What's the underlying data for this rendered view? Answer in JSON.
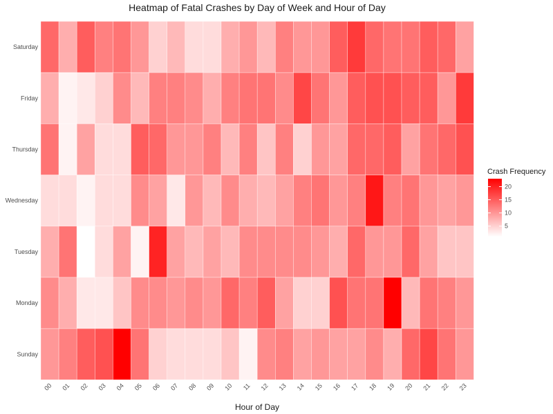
{
  "chart_data": {
    "type": "heatmap",
    "title": "Heatmap of Fatal Crashes by Day of Week and Hour of Day",
    "xlabel": "Hour of Day",
    "ylabel": "",
    "x_categories": [
      "00",
      "01",
      "02",
      "03",
      "04",
      "05",
      "06",
      "07",
      "08",
      "09",
      "10",
      "11",
      "12",
      "13",
      "14",
      "15",
      "16",
      "17",
      "18",
      "19",
      "20",
      "21",
      "22",
      "23"
    ],
    "y_categories": [
      "Saturday",
      "Friday",
      "Thursday",
      "Wednesday",
      "Tuesday",
      "Monday",
      "Sunday"
    ],
    "values": [
      [
        14,
        8,
        15,
        12,
        13,
        10,
        5,
        7,
        4,
        4,
        8,
        10,
        7,
        12,
        10,
        10,
        15,
        18,
        14,
        13,
        13,
        15,
        14,
        9
      ],
      [
        8,
        2,
        3,
        5,
        11,
        7,
        12,
        12,
        11,
        8,
        12,
        13,
        13,
        11,
        17,
        13,
        10,
        15,
        16,
        16,
        15,
        15,
        10,
        18
      ],
      [
        13,
        2,
        9,
        4,
        4,
        15,
        14,
        10,
        10,
        12,
        7,
        12,
        6,
        12,
        5,
        10,
        9,
        14,
        14,
        15,
        9,
        13,
        14,
        16
      ],
      [
        4,
        4,
        2,
        4,
        4,
        11,
        9,
        3,
        10,
        7,
        11,
        8,
        7,
        9,
        12,
        13,
        10,
        12,
        21,
        12,
        13,
        10,
        9,
        10
      ],
      [
        8,
        13,
        1,
        4,
        9,
        2,
        20,
        9,
        7,
        9,
        7,
        11,
        11,
        11,
        11,
        10,
        8,
        14,
        10,
        10,
        14,
        9,
        6,
        6
      ],
      [
        11,
        8,
        3,
        3,
        6,
        11,
        11,
        10,
        11,
        10,
        14,
        12,
        15,
        9,
        5,
        5,
        16,
        13,
        13,
        23,
        7,
        13,
        12,
        10
      ],
      [
        10,
        12,
        15,
        16,
        23,
        13,
        5,
        4,
        4,
        4,
        6,
        2,
        11,
        12,
        9,
        10,
        9,
        9,
        11,
        8,
        14,
        17,
        13,
        10
      ]
    ],
    "legend": {
      "title": "Crash Frequency",
      "ticks": [
        5,
        10,
        15,
        20
      ],
      "range": [
        1,
        23
      ],
      "low_color": "#ffffff",
      "high_color": "#ff0000",
      "placement": "right"
    }
  }
}
